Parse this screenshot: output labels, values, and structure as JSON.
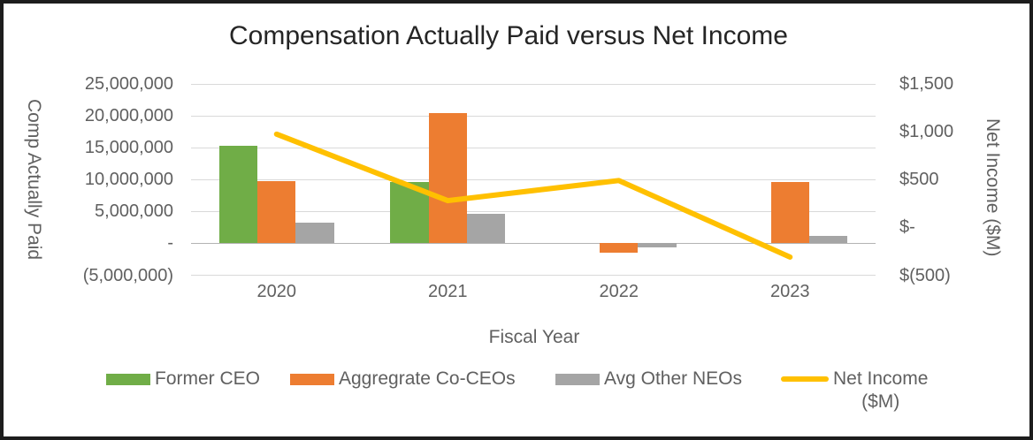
{
  "chart_data": {
    "type": "combo-bar-line",
    "title": "Compensation Actually Paid versus Net Income",
    "categories": [
      "2020",
      "2021",
      "2022",
      "2023"
    ],
    "xlabel": "Fiscal Year",
    "left_axis": {
      "label": "Comp Actually Paid",
      "min": -5000000,
      "max": 25000000,
      "tick_values": [
        25000000,
        20000000,
        15000000,
        10000000,
        5000000,
        0,
        -5000000
      ],
      "tick_labels": [
        "25,000,000",
        "20,000,000",
        "15,000,000",
        "10,000,000",
        "5,000,000",
        "-",
        "(5,000,000)"
      ],
      "gridlines": true
    },
    "right_axis": {
      "label": "Net Income ($M)",
      "min": -500,
      "max": 1500,
      "tick_values": [
        1500,
        1000,
        500,
        0,
        -500
      ],
      "tick_labels": [
        "$1,500",
        "$1,000",
        "$500",
        "$-",
        "$(500)"
      ]
    },
    "series": [
      {
        "name": "Former CEO",
        "type": "bar",
        "axis": "left",
        "color": "#70AD47",
        "values": [
          15300000,
          9600000,
          null,
          null
        ]
      },
      {
        "name": "Aggregrate Co-CEOs",
        "type": "bar",
        "axis": "left",
        "color": "#ED7D31",
        "values": [
          9700000,
          20400000,
          -1400000,
          9600000
        ]
      },
      {
        "name": "Avg Other NEOs",
        "type": "bar",
        "axis": "left",
        "color": "#A5A5A5",
        "values": [
          3200000,
          4600000,
          -600000,
          1200000
        ]
      },
      {
        "name": "Net Income ($M)",
        "type": "line",
        "axis": "right",
        "color": "#FFC000",
        "values": [
          975,
          280,
          490,
          -310
        ]
      }
    ],
    "legend_position": "bottom"
  },
  "legend": {
    "items": [
      {
        "label": "Former CEO",
        "swatch": "rect",
        "color": "#70AD47"
      },
      {
        "label": "Aggregrate Co-CEOs",
        "swatch": "rect",
        "color": "#ED7D31"
      },
      {
        "label": "Avg Other NEOs",
        "swatch": "rect",
        "color": "#A5A5A5"
      },
      {
        "label": "Net Income",
        "label_line2": "($M)",
        "swatch": "line",
        "color": "#FFC000"
      }
    ]
  }
}
